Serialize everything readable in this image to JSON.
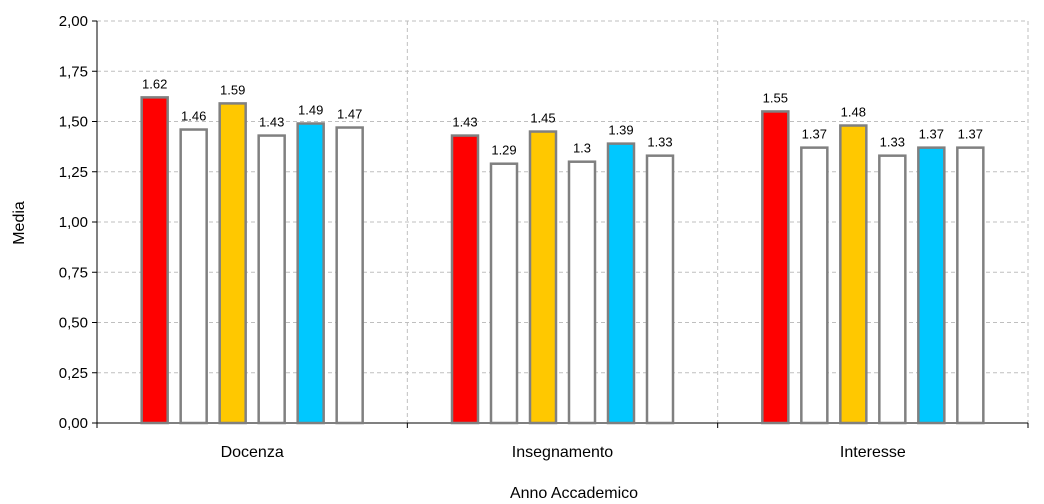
{
  "chart_data": {
    "type": "bar",
    "categories": [
      "Docenza",
      "Insegnamento",
      "Interesse"
    ],
    "series": [
      {
        "color": "#ff0000",
        "values": [
          1.62,
          1.43,
          1.55
        ],
        "labels": [
          "1.62",
          "1.43",
          "1.55"
        ]
      },
      {
        "color": "#ffffff",
        "values": [
          1.46,
          1.29,
          1.37
        ],
        "labels": [
          "1.46",
          "1.29",
          "1.37"
        ]
      },
      {
        "color": "#ffc800",
        "values": [
          1.59,
          1.45,
          1.48
        ],
        "labels": [
          "1.59",
          "1.45",
          "1.48"
        ]
      },
      {
        "color": "#ffffff",
        "values": [
          1.43,
          1.3,
          1.33
        ],
        "labels": [
          "1.43",
          "1.3",
          "1.33"
        ]
      },
      {
        "color": "#00c8ff",
        "values": [
          1.49,
          1.39,
          1.37
        ],
        "labels": [
          "1.49",
          "1.39",
          "1.37"
        ]
      },
      {
        "color": "#ffffff",
        "values": [
          1.47,
          1.33,
          1.37
        ],
        "labels": [
          "1.47",
          "1.33",
          "1.37"
        ]
      }
    ],
    "xlabel": "Anno Accademico",
    "ylabel": "Media",
    "ylim": [
      0,
      2
    ],
    "yticks": [
      "0,00",
      "0,25",
      "0,50",
      "0,75",
      "1,00",
      "1,25",
      "1,50",
      "1,75",
      "2,00"
    ],
    "grid": true,
    "bar_border_color": "#808080",
    "grid_color": "#bfbfbf"
  }
}
